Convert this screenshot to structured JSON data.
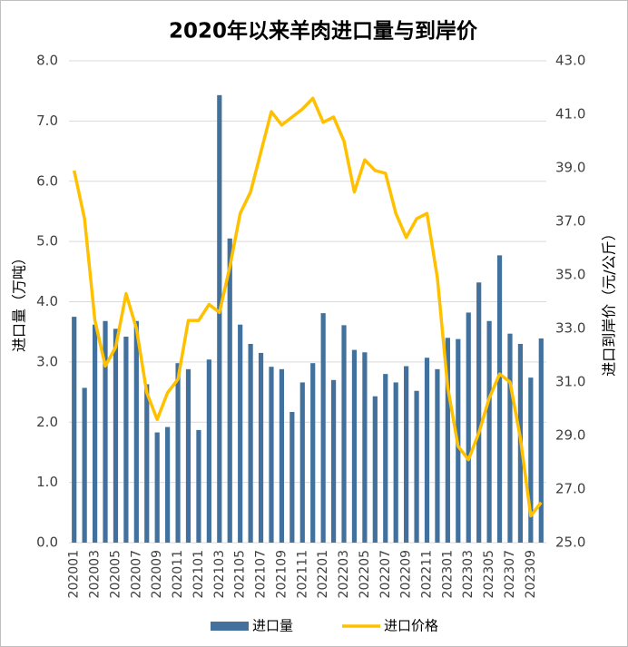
{
  "chart_data": {
    "type": "bar",
    "title": "2020年以来羊肉进口量与到岸价",
    "y_label": "进口量（万吨）",
    "y2_label": "进口到岸价（元/公斤）",
    "categories": [
      "202001",
      null,
      "202003",
      null,
      "202005",
      null,
      "202007",
      null,
      "202009",
      null,
      "202011",
      null,
      "202101",
      null,
      "202103",
      null,
      "202105",
      null,
      "202107",
      null,
      "202109",
      null,
      "202111",
      null,
      "202201",
      null,
      "202203",
      null,
      "202205",
      null,
      "202207",
      null,
      "202209",
      null,
      "202211",
      null,
      "202301",
      null,
      "202303",
      null,
      "202305",
      null,
      "202307",
      null,
      "202309",
      null
    ],
    "series": [
      {
        "name": "进口量",
        "type": "bar",
        "color": "#41719c",
        "values": [
          3.75,
          2.57,
          3.62,
          3.68,
          3.55,
          3.42,
          3.68,
          2.63,
          1.83,
          1.92,
          2.98,
          2.88,
          1.87,
          3.04,
          7.43,
          5.05,
          3.62,
          3.3,
          3.15,
          2.92,
          2.88,
          2.17,
          2.66,
          2.98,
          3.81,
          2.7,
          3.61,
          3.2,
          3.16,
          2.43,
          2.8,
          2.66,
          2.93,
          2.52,
          3.07,
          2.88,
          3.4,
          3.38,
          3.82,
          4.32,
          3.68,
          4.77,
          3.47,
          3.3,
          2.74,
          3.39
        ]
      },
      {
        "name": "进口价格",
        "type": "line",
        "axis": "y2",
        "color": "#ffc000",
        "values": [
          38.9,
          37.1,
          33.3,
          31.6,
          32.3,
          34.3,
          33.0,
          30.6,
          29.6,
          30.6,
          31.1,
          33.3,
          33.3,
          33.9,
          33.6,
          35.3,
          37.3,
          38.1,
          39.6,
          41.1,
          40.6,
          40.9,
          41.2,
          41.6,
          40.7,
          40.9,
          40.0,
          38.1,
          39.3,
          38.9,
          38.8,
          37.3,
          36.4,
          37.1,
          37.3,
          34.9,
          30.8,
          28.6,
          28.1,
          29.1,
          30.4,
          31.3,
          31.0,
          28.9,
          26.0,
          26.5
        ]
      }
    ],
    "ylim": [
      0,
      8
    ],
    "yticks": [
      {
        "value": 0,
        "label": "0.0"
      },
      {
        "value": 1,
        "label": "1.0"
      },
      {
        "value": 2,
        "label": "2.0"
      },
      {
        "value": 3,
        "label": "3.0"
      },
      {
        "value": 4,
        "label": "4.0"
      },
      {
        "value": 5,
        "label": "5.0"
      },
      {
        "value": 6,
        "label": "6.0"
      },
      {
        "value": 7,
        "label": "7.0"
      },
      {
        "value": 8,
        "label": "8.0"
      }
    ],
    "y2lim": [
      25,
      43
    ],
    "y2ticks": [
      {
        "value": 25,
        "label": "25.0"
      },
      {
        "value": 27,
        "label": "27.0"
      },
      {
        "value": 29,
        "label": "29.0"
      },
      {
        "value": 31,
        "label": "31.0"
      },
      {
        "value": 33,
        "label": "33.0"
      },
      {
        "value": 35,
        "label": "35.0"
      },
      {
        "value": 37,
        "label": "37.0"
      },
      {
        "value": 39,
        "label": "39.0"
      },
      {
        "value": 41,
        "label": "41.0"
      },
      {
        "value": 43,
        "label": "43.0"
      }
    ],
    "grid": true,
    "legend": "bottom"
  }
}
